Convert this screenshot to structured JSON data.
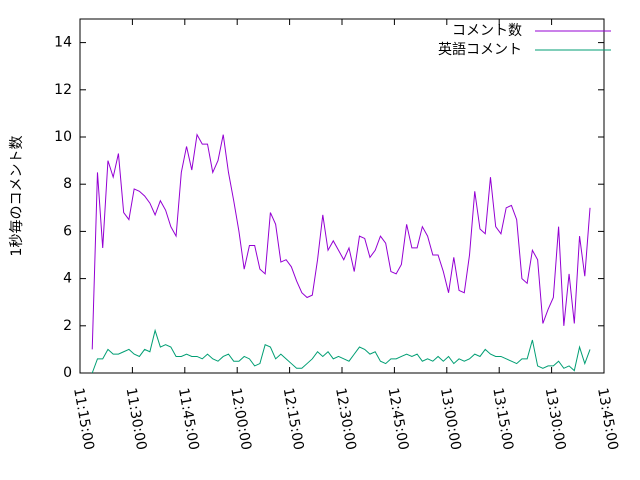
{
  "chart_data": {
    "type": "line",
    "ylabel": "1秒毎のコメント数",
    "x": [
      "11:18:30",
      "11:20:00",
      "11:21:30",
      "11:23:00",
      "11:24:30",
      "11:26:00",
      "11:27:30",
      "11:29:00",
      "11:30:30",
      "11:32:00",
      "11:33:30",
      "11:35:00",
      "11:36:30",
      "11:38:00",
      "11:39:30",
      "11:41:00",
      "11:42:30",
      "11:44:00",
      "11:45:30",
      "11:47:00",
      "11:48:30",
      "11:50:00",
      "11:51:30",
      "11:53:00",
      "11:54:30",
      "11:56:00",
      "11:57:30",
      "11:59:00",
      "12:00:30",
      "12:02:00",
      "12:03:30",
      "12:05:00",
      "12:06:30",
      "12:08:00",
      "12:09:30",
      "12:11:00",
      "12:12:30",
      "12:14:00",
      "12:15:30",
      "12:17:00",
      "12:18:30",
      "12:20:00",
      "12:21:30",
      "12:23:00",
      "12:24:30",
      "12:26:00",
      "12:27:30",
      "12:29:00",
      "12:30:30",
      "12:32:00",
      "12:33:30",
      "12:35:00",
      "12:36:30",
      "12:38:00",
      "12:39:30",
      "12:41:00",
      "12:42:30",
      "12:44:00",
      "12:45:30",
      "12:47:00",
      "12:48:30",
      "12:50:00",
      "12:51:30",
      "12:53:00",
      "12:54:30",
      "12:56:00",
      "12:57:30",
      "12:59:00",
      "13:00:30",
      "13:02:00",
      "13:03:30",
      "13:05:00",
      "13:06:30",
      "13:08:00",
      "13:09:30",
      "13:11:00",
      "13:12:30",
      "13:14:00",
      "13:15:30",
      "13:17:00",
      "13:18:30",
      "13:20:00",
      "13:21:30",
      "13:23:00",
      "13:24:30",
      "13:26:00",
      "13:27:30",
      "13:29:00",
      "13:30:30",
      "13:32:00",
      "13:33:30",
      "13:35:00",
      "13:36:30",
      "13:38:00",
      "13:39:30",
      "13:41:00"
    ],
    "series": [
      {
        "name": "コメント数",
        "color": "#9400d3",
        "values": [
          1.0,
          8.5,
          5.3,
          9.0,
          8.3,
          9.3,
          6.8,
          6.5,
          7.8,
          7.7,
          7.5,
          7.2,
          6.7,
          7.3,
          6.9,
          6.2,
          5.8,
          8.5,
          9.6,
          8.6,
          10.1,
          9.7,
          9.7,
          8.5,
          9.0,
          10.1,
          8.5,
          7.3,
          6.0,
          4.4,
          5.4,
          5.4,
          4.4,
          4.2,
          6.8,
          6.3,
          4.7,
          4.8,
          4.5,
          3.9,
          3.4,
          3.2,
          3.3,
          4.8,
          6.7,
          5.2,
          5.6,
          5.2,
          4.8,
          5.3,
          4.3,
          5.8,
          5.7,
          4.9,
          5.2,
          5.8,
          5.5,
          4.3,
          4.2,
          4.6,
          6.3,
          5.3,
          5.3,
          6.2,
          5.8,
          5.0,
          5.0,
          4.3,
          3.4,
          4.9,
          3.5,
          3.4,
          5.0,
          7.7,
          6.1,
          5.9,
          8.3,
          6.2,
          5.9,
          7.0,
          7.1,
          6.5,
          4.0,
          3.8,
          5.2,
          4.8,
          2.1,
          2.7,
          3.2,
          6.2,
          2.0,
          4.2,
          2.1,
          5.8,
          4.1,
          7.0
        ]
      },
      {
        "name": "英語コメント",
        "color": "#009e73",
        "values": [
          0.0,
          0.6,
          0.6,
          1.0,
          0.8,
          0.8,
          0.9,
          1.0,
          0.8,
          0.7,
          1.0,
          0.9,
          1.8,
          1.1,
          1.2,
          1.1,
          0.7,
          0.7,
          0.8,
          0.7,
          0.7,
          0.6,
          0.8,
          0.6,
          0.5,
          0.7,
          0.8,
          0.5,
          0.5,
          0.7,
          0.6,
          0.3,
          0.4,
          1.2,
          1.1,
          0.6,
          0.8,
          0.6,
          0.4,
          0.2,
          0.2,
          0.4,
          0.6,
          0.9,
          0.7,
          0.9,
          0.6,
          0.7,
          0.6,
          0.5,
          0.8,
          1.1,
          1.0,
          0.8,
          0.9,
          0.5,
          0.4,
          0.6,
          0.6,
          0.7,
          0.8,
          0.7,
          0.8,
          0.5,
          0.6,
          0.5,
          0.7,
          0.5,
          0.7,
          0.4,
          0.6,
          0.5,
          0.6,
          0.8,
          0.7,
          1.0,
          0.8,
          0.7,
          0.7,
          0.6,
          0.5,
          0.4,
          0.6,
          0.6,
          1.4,
          0.3,
          0.2,
          0.3,
          0.3,
          0.5,
          0.2,
          0.3,
          0.1,
          1.1,
          0.4,
          1.0
        ]
      }
    ],
    "xlim": [
      "11:15:00",
      "13:45:00"
    ],
    "xticks": [
      "11:15:00",
      "11:30:00",
      "11:45:00",
      "12:00:00",
      "12:15:00",
      "12:30:00",
      "12:45:00",
      "13:00:00",
      "13:15:00",
      "13:30:00",
      "13:45:00"
    ],
    "ylim": [
      0,
      15
    ],
    "yticks": [
      0,
      2,
      4,
      6,
      8,
      10,
      12,
      14
    ],
    "legend": "top-right"
  }
}
